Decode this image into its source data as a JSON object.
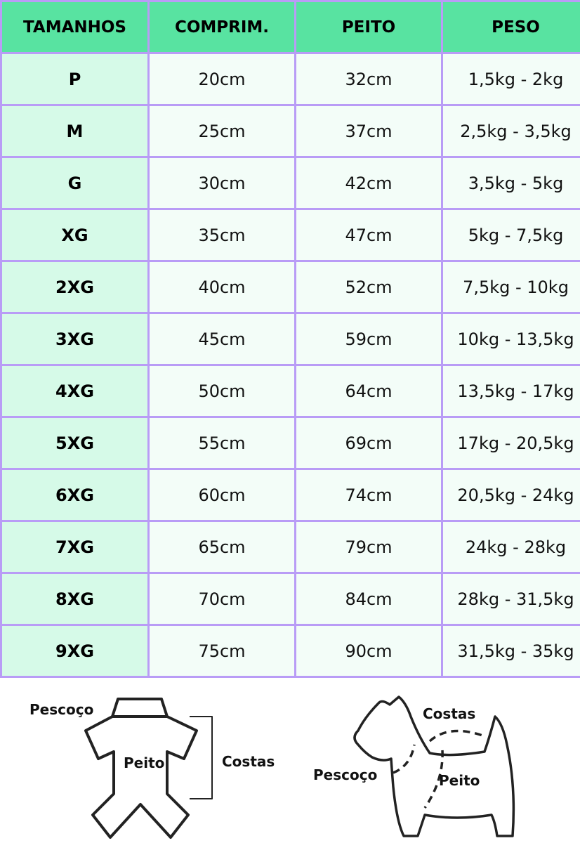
{
  "headers": [
    "TAMANHOS",
    "COMPRIM.",
    "PEITO",
    "PESO"
  ],
  "rows": [
    [
      "P",
      "20cm",
      "32cm",
      "1,5kg - 2kg"
    ],
    [
      "M",
      "25cm",
      "37cm",
      "2,5kg - 3,5kg"
    ],
    [
      "G",
      "30cm",
      "42cm",
      "3,5kg - 5kg"
    ],
    [
      "XG",
      "35cm",
      "47cm",
      "5kg - 7,5kg"
    ],
    [
      "2XG",
      "40cm",
      "52cm",
      "7,5kg - 10kg"
    ],
    [
      "3XG",
      "45cm",
      "59cm",
      "10kg - 13,5kg"
    ],
    [
      "4XG",
      "50cm",
      "64cm",
      "13,5kg - 17kg"
    ],
    [
      "5XG",
      "55cm",
      "69cm",
      "17kg - 20,5kg"
    ],
    [
      "6XG",
      "60cm",
      "74cm",
      "20,5kg - 24kg"
    ],
    [
      "7XG",
      "65cm",
      "79cm",
      "24kg - 28kg"
    ],
    [
      "8XG",
      "70cm",
      "84cm",
      "28kg - 31,5kg"
    ],
    [
      "9XG",
      "75cm",
      "90cm",
      "31,5kg - 35kg"
    ]
  ],
  "colors": {
    "header": "#58e3a1",
    "first_column": "#d6fae8",
    "cell": "#f3fdf8",
    "border": "#b99cf6"
  },
  "diagram": {
    "garment": {
      "neck": "Pescoço",
      "chest": "Peito",
      "back": "Costas"
    },
    "dog": {
      "neck": "Pescoço",
      "chest": "Peito",
      "back": "Costas"
    }
  }
}
